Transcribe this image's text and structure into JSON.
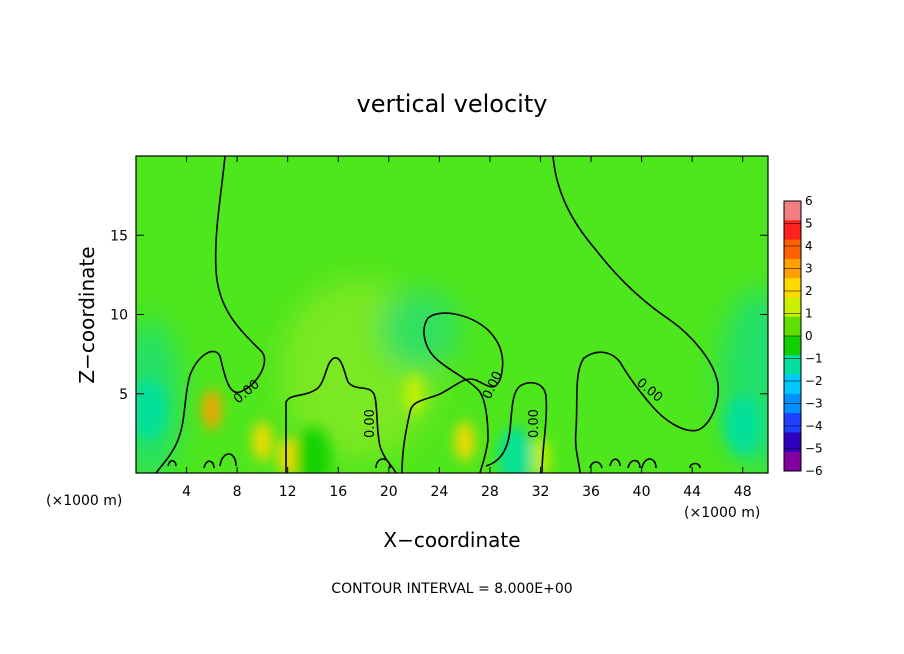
{
  "chart_data": {
    "type": "heatmap",
    "title": "vertical velocity",
    "xlabel": "X−coordinate",
    "ylabel": "Z−coordinate",
    "x_unit_left": "(×1000 m)",
    "x_unit_right": "(×1000 m)",
    "xlim": [
      0,
      50
    ],
    "ylim": [
      0,
      20
    ],
    "x_ticks": [
      4,
      8,
      12,
      16,
      20,
      24,
      28,
      32,
      36,
      40,
      44,
      48
    ],
    "y_ticks": [
      5,
      10,
      15
    ],
    "note": "CONTOUR INTERVAL = 8.000E+00",
    "contour_label": "0.00",
    "colorbar": {
      "levels": [
        "6",
        "5",
        "4",
        "3",
        "2",
        "1",
        "0",
        "−1",
        "−2",
        "−3",
        "−4",
        "−5",
        "−6"
      ],
      "colors": [
        "#f08080",
        "#ff2020",
        "#ff6000",
        "#ffa000",
        "#ffd800",
        "#c8f000",
        "#60e000",
        "#10d000",
        "#00e0a0",
        "#00c8ff",
        "#0090ff",
        "#2040ff",
        "#3000c0",
        "#8000a0"
      ]
    },
    "background_color": "#4ee61c",
    "features": [
      {
        "x": 6,
        "z": 4,
        "w": 3,
        "label": "updraft"
      },
      {
        "x": 10,
        "z": 2,
        "w": 2,
        "label": "updraft"
      },
      {
        "x": 12,
        "z": 1,
        "w": 2,
        "label": "updraft"
      },
      {
        "x": 26,
        "z": 2,
        "w": 2,
        "label": "updraft"
      },
      {
        "x": 22,
        "z": 5,
        "w": 1,
        "label": "updraft"
      },
      {
        "x": 32,
        "z": 1,
        "w": 1,
        "label": "updraft"
      },
      {
        "x": 1,
        "z": 4,
        "w": -2,
        "label": "downdraft"
      },
      {
        "x": 14,
        "z": 1,
        "w": -1,
        "label": "downdraft"
      },
      {
        "x": 30,
        "z": 1,
        "w": -2,
        "label": "downdraft"
      },
      {
        "x": 48,
        "z": 3,
        "w": -2,
        "label": "downdraft"
      }
    ]
  }
}
